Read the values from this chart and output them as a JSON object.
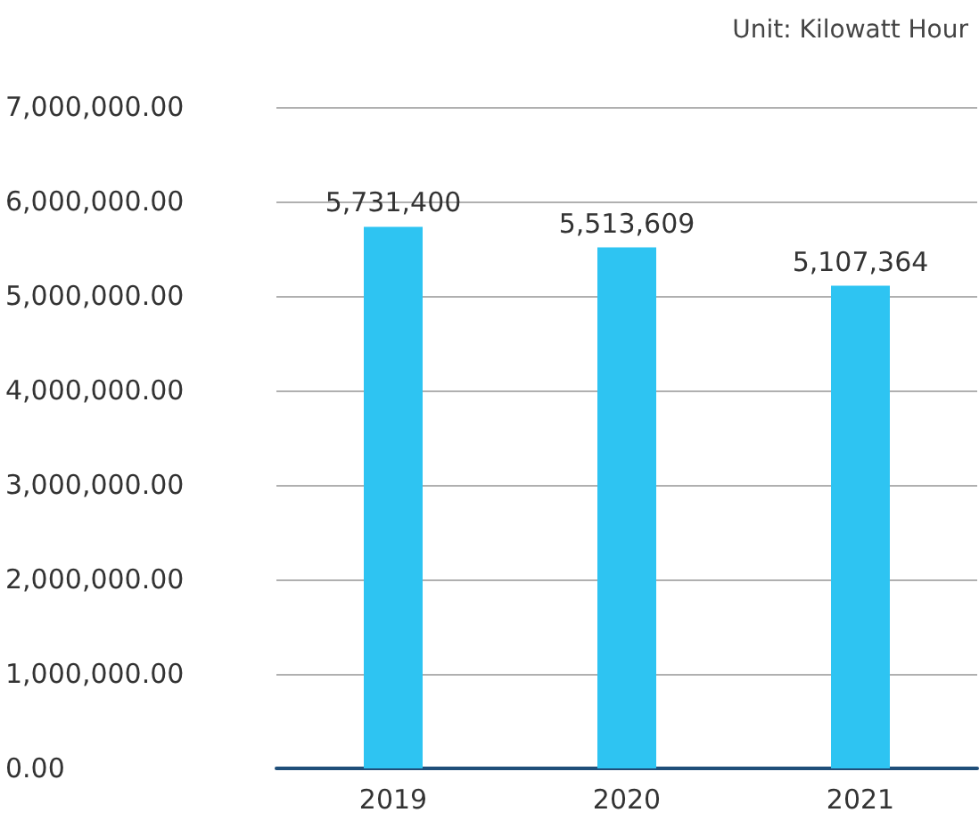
{
  "chart_data": {
    "type": "bar",
    "annotations": [
      "Unit: Kilowatt Hour"
    ],
    "categories": [
      "2019",
      "2020",
      "2021"
    ],
    "values": [
      5731400,
      5513609,
      5107364
    ],
    "color": "#2ec4f2",
    "ylim": [
      0,
      7000000
    ],
    "yticks": [
      {
        "value": 0,
        "label": "0.00"
      },
      {
        "value": 1000000,
        "label": "1,000,000.00"
      },
      {
        "value": 2000000,
        "label": "2,000,000.00"
      },
      {
        "value": 3000000,
        "label": "3,000,000.00"
      },
      {
        "value": 4000000,
        "label": "4,000,000.00"
      },
      {
        "value": 5000000,
        "label": "5,000,000.00"
      },
      {
        "value": 6000000,
        "label": "6,000,000.00"
      },
      {
        "value": 7000000,
        "label": "7,000,000.00"
      }
    ],
    "value_labels": [
      "5,731,400",
      "5,513,609",
      "5,107,364"
    ],
    "grid": "y"
  }
}
